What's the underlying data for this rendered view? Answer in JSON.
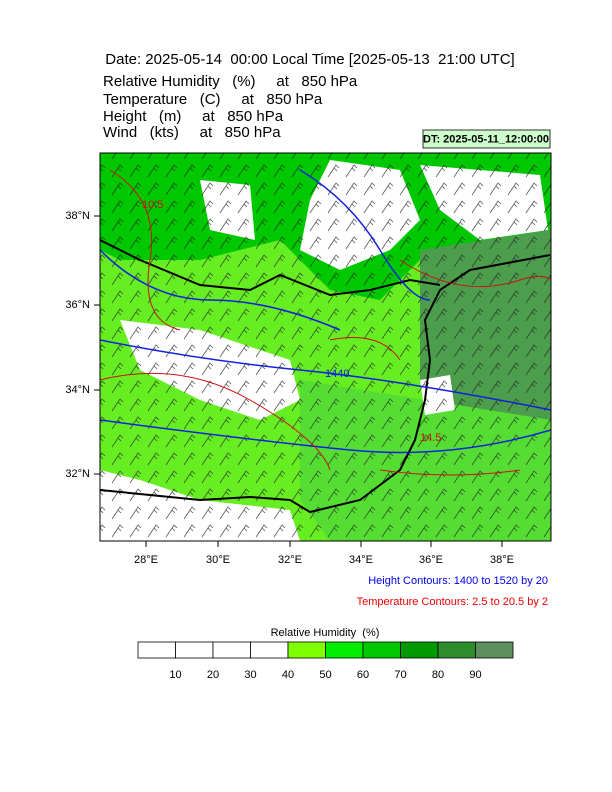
{
  "header": {
    "title": "Date: 2025-05-14  00:00 Local Time [2025-05-13  21:00 UTC]",
    "fields": [
      "Relative Humidity   (%)     at   850 hPa",
      "Temperature   (C)     at   850 hPa",
      "Height   (m)     at   850 hPa",
      "Wind   (kts)     at   850 hPa"
    ],
    "dt": "DT: 2025-05-11_12:00:00"
  },
  "map": {
    "lon_labels": [
      "28°E",
      "30°E",
      "32°E",
      "34°E",
      "36°E",
      "38°E"
    ],
    "lat_labels": [
      "38°N",
      "36°N",
      "34°N",
      "32°N"
    ],
    "contour_labels": [
      "1440",
      "14.5",
      "10.5"
    ]
  },
  "notes": {
    "height": "Height Contours: 1400 to 1520 by 20",
    "temperature": "Temperature Contours: 2.5 to 20.5 by 2"
  },
  "colorbar": {
    "title": "Relative Humidity  (%)",
    "labels": [
      "10",
      "20",
      "30",
      "40",
      "50",
      "60",
      "70",
      "80",
      "90"
    ],
    "colors": [
      "#ffffff",
      "#ffffff",
      "#ffffff",
      "#ffffff",
      "#80ff00",
      "#00ee00",
      "#00c800",
      "#009a00",
      "#2e8b2e",
      "#5b8f5b"
    ]
  }
}
